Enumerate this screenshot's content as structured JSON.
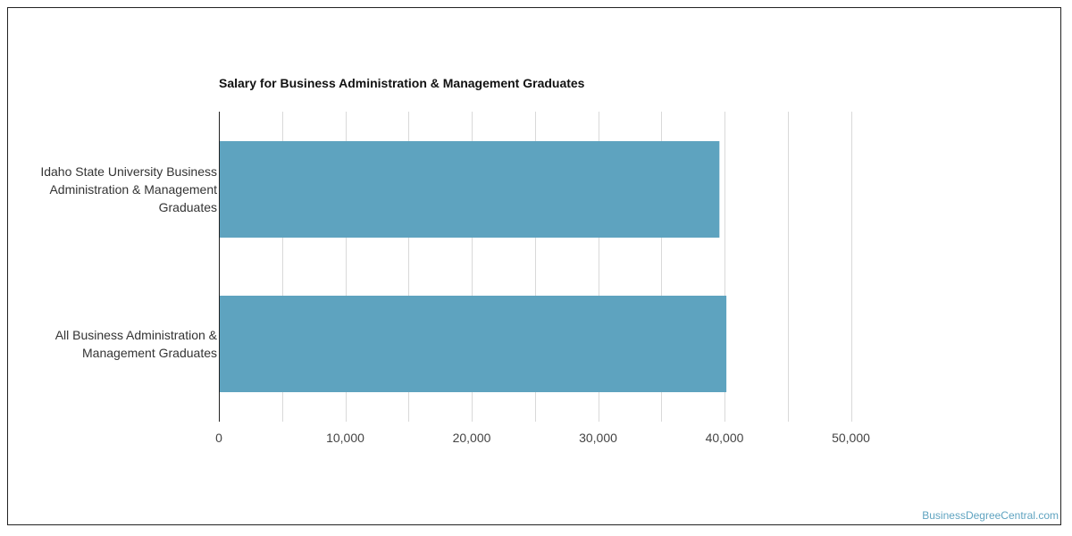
{
  "chart_data": {
    "type": "bar",
    "orientation": "horizontal",
    "title": "Salary for Business Administration & Management Graduates",
    "categories": [
      [
        "Idaho State University Business",
        "Administration & Management",
        "Graduates"
      ],
      [
        "All Business Administration &",
        "Management Graduates"
      ]
    ],
    "values": [
      39600,
      40150
    ],
    "xlim": [
      0,
      50000
    ],
    "xticks": [
      0,
      10000,
      20000,
      30000,
      40000,
      50000
    ],
    "xtick_labels": [
      "0",
      "10,000",
      "20,000",
      "30,000",
      "40,000",
      "50,000"
    ],
    "xlabel": "",
    "ylabel": "",
    "grid": true,
    "bar_color": "#5ea3bf",
    "grid_color": "#d9d9d9",
    "axis_color": "#222222"
  },
  "watermark": "BusinessDegreeCentral.com"
}
